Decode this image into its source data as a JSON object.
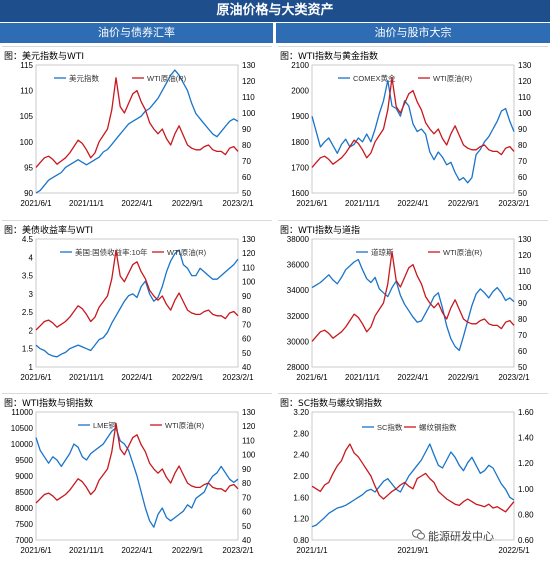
{
  "header": {
    "title": "原油价格与大类资产"
  },
  "columns": {
    "left": "油价与债券汇率",
    "right": "油价与股市大宗"
  },
  "panels": [
    {
      "title": "图：美元指数与WTI"
    },
    {
      "title": "图：WTI指数与黄金指数"
    },
    {
      "title": "图：美债收益率与WTI"
    },
    {
      "title": "图：WTI指数与道指"
    },
    {
      "title": "图：WTI指数与铜指数"
    },
    {
      "title": "图：SC指数与螺纹钢指数"
    }
  ],
  "watermark": "能源研发中心",
  "colors": {
    "header_bg": "#1f4e8c",
    "subheader_bg": "#2e6db3",
    "series_blue": "#1a74c9",
    "series_red": "#c8181e"
  },
  "chart_data": [
    {
      "type": "line",
      "title": "图：美元指数与WTI",
      "x_ticks": [
        "2021/6/1",
        "2021/11/1",
        "2022/4/1",
        "2022/9/1",
        "2023/2/1"
      ],
      "ylim": [
        90,
        115
      ],
      "y_ticks": [
        "90",
        "95",
        "100",
        "105",
        "110",
        "115"
      ],
      "y2lim": [
        50,
        130
      ],
      "y2_ticks": [
        "50",
        "60",
        "70",
        "80",
        "90",
        "100",
        "110",
        "120",
        "130"
      ],
      "series": [
        {
          "name": "美元指数",
          "axis": "left",
          "values": [
            90,
            90.5,
            91.5,
            92.5,
            93,
            93.5,
            94,
            95,
            95.5,
            96,
            96.5,
            96,
            95.5,
            96,
            96.5,
            97,
            98,
            98.5,
            99.5,
            100.5,
            101.5,
            102.5,
            103.5,
            104,
            104.5,
            105,
            106,
            106.5,
            107.5,
            108.5,
            110,
            111.5,
            113,
            114,
            113,
            111.5,
            110,
            107.5,
            105.5,
            104.5,
            103.5,
            102.5,
            101.5,
            101,
            102,
            103,
            104,
            104.5,
            104
          ]
        },
        {
          "name": "WTI原油(R)",
          "axis": "right",
          "values": [
            66,
            69,
            72,
            73,
            71,
            68,
            70,
            72,
            75,
            79,
            83,
            81,
            77,
            72,
            75,
            82,
            86,
            90,
            102,
            122,
            104,
            100,
            106,
            112,
            114,
            107,
            102,
            94,
            90,
            87,
            90,
            84,
            80,
            87,
            92,
            86,
            80,
            78,
            77,
            77,
            79,
            80,
            77,
            76,
            76,
            74,
            78,
            79,
            76
          ]
        }
      ]
    },
    {
      "type": "line",
      "title": "图：WTI指数与黄金指数",
      "x_ticks": [
        "2021/6/1",
        "2021/11/1",
        "2022/4/1",
        "2022/9/1",
        "2023/2/1"
      ],
      "ylim": [
        1600,
        2100
      ],
      "y_ticks": [
        "1600",
        "1700",
        "1800",
        "1900",
        "2000",
        "2100"
      ],
      "y2lim": [
        50,
        130
      ],
      "y2_ticks": [
        "50",
        "60",
        "70",
        "80",
        "90",
        "100",
        "110",
        "120",
        "130"
      ],
      "series": [
        {
          "name": "COMEX黄金",
          "axis": "left",
          "values": [
            1900,
            1840,
            1780,
            1800,
            1815,
            1785,
            1755,
            1790,
            1810,
            1780,
            1790,
            1815,
            1800,
            1830,
            1800,
            1850,
            1910,
            1960,
            2040,
            1940,
            1930,
            1900,
            1960,
            1940,
            1870,
            1840,
            1850,
            1830,
            1760,
            1730,
            1760,
            1740,
            1710,
            1720,
            1680,
            1650,
            1660,
            1640,
            1660,
            1750,
            1770,
            1800,
            1820,
            1850,
            1880,
            1920,
            1930,
            1880,
            1840
          ]
        },
        {
          "name": "WTI原油(R)",
          "axis": "right",
          "values": [
            66,
            69,
            72,
            73,
            71,
            68,
            70,
            72,
            75,
            79,
            83,
            81,
            77,
            72,
            75,
            82,
            86,
            90,
            102,
            122,
            104,
            100,
            106,
            112,
            114,
            107,
            102,
            94,
            90,
            87,
            90,
            84,
            80,
            87,
            92,
            86,
            80,
            78,
            77,
            77,
            79,
            80,
            77,
            76,
            76,
            74,
            78,
            79,
            76
          ]
        }
      ]
    },
    {
      "type": "line",
      "title": "图：美债收益率与WTI",
      "x_ticks": [
        "2021/6/1",
        "2021/11/1",
        "2022/4/1",
        "2022/9/1",
        "2023/2/1"
      ],
      "ylim": [
        1,
        4.5
      ],
      "y_ticks": [
        "1",
        "1.5",
        "2",
        "2.5",
        "3",
        "3.5",
        "4",
        "4.5"
      ],
      "y2lim": [
        40,
        130
      ],
      "y2_ticks": [
        "40",
        "50",
        "60",
        "70",
        "80",
        "90",
        "100",
        "110",
        "120",
        "130"
      ],
      "series": [
        {
          "name": "美国:国债收益率:10年",
          "axis": "left",
          "values": [
            1.6,
            1.5,
            1.45,
            1.35,
            1.3,
            1.28,
            1.35,
            1.4,
            1.5,
            1.55,
            1.6,
            1.55,
            1.5,
            1.45,
            1.6,
            1.75,
            1.8,
            1.95,
            2.2,
            2.4,
            2.6,
            2.8,
            2.95,
            3.0,
            2.9,
            3.2,
            3.35,
            3.0,
            2.8,
            2.9,
            3.2,
            3.6,
            3.9,
            4.1,
            4.2,
            3.8,
            3.7,
            3.5,
            3.5,
            3.7,
            3.6,
            3.5,
            3.4,
            3.4,
            3.5,
            3.6,
            3.7,
            3.8,
            3.95
          ]
        },
        {
          "name": "WTI原油(R)",
          "axis": "right",
          "values": [
            66,
            69,
            72,
            73,
            71,
            68,
            70,
            72,
            75,
            79,
            83,
            81,
            77,
            72,
            75,
            82,
            86,
            90,
            102,
            122,
            104,
            100,
            106,
            112,
            114,
            107,
            102,
            94,
            90,
            87,
            90,
            84,
            80,
            87,
            92,
            86,
            80,
            78,
            77,
            77,
            79,
            80,
            77,
            76,
            76,
            74,
            78,
            79,
            76
          ]
        }
      ]
    },
    {
      "type": "line",
      "title": "图：WTI指数与道指",
      "x_ticks": [
        "2021/6/1",
        "2021/11/1",
        "2022/4/1",
        "2022/9/1",
        "2023/2/1"
      ],
      "ylim": [
        28000,
        38000
      ],
      "y_ticks": [
        "28000",
        "30000",
        "32000",
        "34000",
        "36000",
        "38000"
      ],
      "y2lim": [
        50,
        130
      ],
      "y2_ticks": [
        "50",
        "60",
        "70",
        "80",
        "90",
        "100",
        "110",
        "120",
        "130"
      ],
      "series": [
        {
          "name": "道琼斯",
          "axis": "left",
          "values": [
            34200,
            34400,
            34600,
            34900,
            35200,
            34800,
            34500,
            35000,
            35600,
            35900,
            36200,
            36400,
            35600,
            34900,
            34600,
            35000,
            34100,
            33800,
            33500,
            34200,
            34700,
            33600,
            32900,
            32400,
            31900,
            31500,
            31600,
            32200,
            32800,
            33500,
            33800,
            32600,
            31200,
            30200,
            29600,
            29300,
            30400,
            31600,
            32800,
            33700,
            34100,
            33800,
            33400,
            33900,
            34200,
            33800,
            33200,
            33400,
            33100
          ]
        },
        {
          "name": "WTI原油(R)",
          "axis": "right",
          "values": [
            66,
            69,
            72,
            73,
            71,
            68,
            70,
            72,
            75,
            79,
            83,
            81,
            77,
            72,
            75,
            82,
            86,
            90,
            102,
            122,
            104,
            100,
            106,
            112,
            114,
            107,
            102,
            94,
            90,
            87,
            90,
            84,
            80,
            87,
            92,
            86,
            80,
            78,
            77,
            77,
            79,
            80,
            77,
            76,
            76,
            74,
            78,
            79,
            76
          ]
        }
      ]
    },
    {
      "type": "line",
      "title": "图：WTI指数与铜指数",
      "x_ticks": [
        "2021/6/1",
        "2021/11/1",
        "2022/4/1",
        "2022/9/1",
        "2023/2/1"
      ],
      "ylim": [
        7000,
        11000
      ],
      "y_ticks": [
        "7000",
        "7500",
        "8000",
        "8500",
        "9000",
        "9500",
        "10000",
        "10500",
        "11000"
      ],
      "y2lim": [
        40,
        130
      ],
      "y2_ticks": [
        "40",
        "50",
        "60",
        "70",
        "80",
        "90",
        "100",
        "110",
        "120",
        "130"
      ],
      "series": [
        {
          "name": "LME铜",
          "axis": "left",
          "values": [
            10200,
            9800,
            9600,
            9400,
            9600,
            9500,
            9300,
            9500,
            9700,
            10000,
            9900,
            9600,
            9500,
            9700,
            9800,
            9900,
            10000,
            10200,
            10400,
            10500,
            10100,
            10000,
            9800,
            9400,
            9000,
            8500,
            8000,
            7600,
            7400,
            7800,
            8000,
            7700,
            7600,
            7700,
            7800,
            7900,
            8100,
            8000,
            8300,
            8400,
            8500,
            8800,
            9000,
            9100,
            9300,
            9100,
            8900,
            8800,
            8900
          ]
        },
        {
          "name": "WTI原油(R)",
          "axis": "right",
          "values": [
            66,
            69,
            72,
            73,
            71,
            68,
            70,
            72,
            75,
            79,
            83,
            81,
            77,
            72,
            75,
            82,
            86,
            90,
            102,
            122,
            104,
            100,
            106,
            112,
            114,
            107,
            102,
            94,
            90,
            87,
            90,
            84,
            80,
            87,
            92,
            86,
            80,
            78,
            77,
            77,
            79,
            80,
            77,
            76,
            76,
            74,
            78,
            79,
            76
          ]
        }
      ]
    },
    {
      "type": "line",
      "title": "图：SC指数与螺纹钢指数",
      "x_ticks": [
        "2021/1/1",
        "2021/9/1",
        "2022/5/1"
      ],
      "ylim": [
        0.8,
        3.2
      ],
      "y_ticks": [
        "0.80",
        "1.20",
        "1.60",
        "2.00",
        "2.40",
        "2.80",
        "3.20"
      ],
      "y2lim": [
        0.6,
        1.6
      ],
      "y2_ticks": [
        "0.60",
        "0.80",
        "1.00",
        "1.20",
        "1.40",
        "1.60"
      ],
      "series": [
        {
          "name": "SC指数",
          "axis": "left",
          "values": [
            1.05,
            1.08,
            1.15,
            1.22,
            1.3,
            1.35,
            1.4,
            1.42,
            1.45,
            1.5,
            1.55,
            1.6,
            1.65,
            1.72,
            1.75,
            1.7,
            1.8,
            1.9,
            1.95,
            1.85,
            1.75,
            1.7,
            1.85,
            2.0,
            2.1,
            2.2,
            2.3,
            2.45,
            2.6,
            2.4,
            2.2,
            2.15,
            2.3,
            2.45,
            2.35,
            2.2,
            2.1,
            2.25,
            2.35,
            2.2,
            2.05,
            2.1,
            2.2,
            2.15,
            2.0,
            1.85,
            1.75,
            1.6,
            1.55
          ]
        },
        {
          "name": "螺纹钢指数",
          "axis": "right",
          "values": [
            1.02,
            1.0,
            0.98,
            1.03,
            1.05,
            1.12,
            1.18,
            1.22,
            1.3,
            1.35,
            1.28,
            1.25,
            1.2,
            1.15,
            1.1,
            1.02,
            0.95,
            0.92,
            0.95,
            0.98,
            1.0,
            1.03,
            1.05,
            1.02,
            1.0,
            1.08,
            1.1,
            1.12,
            1.08,
            1.05,
            0.98,
            0.95,
            0.92,
            0.9,
            0.88,
            0.87,
            0.9,
            0.92,
            0.9,
            0.88,
            0.87,
            0.86,
            0.88,
            0.85,
            0.86,
            0.84,
            0.82,
            0.86,
            0.9
          ]
        }
      ]
    }
  ]
}
